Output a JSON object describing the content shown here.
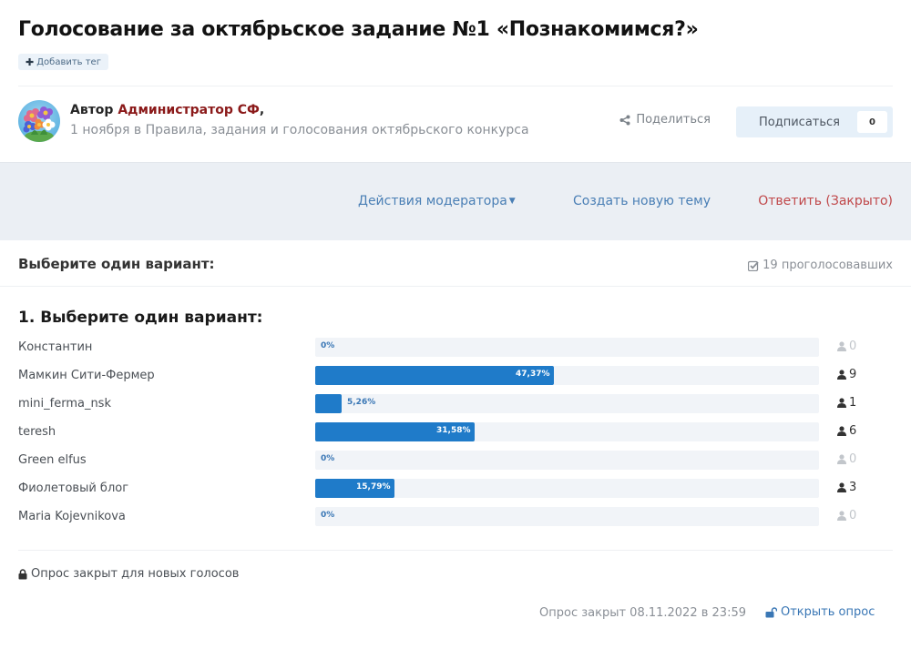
{
  "topic": {
    "title": "Голосование за октябрьское задание №1 «Познакомимся?»",
    "add_tag_label": "Добавить тег"
  },
  "author": {
    "prefix": "Автор",
    "name": "Администратор СФ",
    "suffix": ",",
    "date": "1 ноября",
    "in_word": "в",
    "category": "Правила, задания и голосования октябрьского конкурса"
  },
  "actions": {
    "share_label": "Поделиться",
    "subscribe_label": "Подписаться",
    "subscribe_count": "0"
  },
  "moderation_bar": {
    "moderator_actions": "Действия модератора",
    "new_topic": "Создать новую тему",
    "reply": "Ответить (Закрыто)"
  },
  "poll": {
    "header": "Выберите один вариант:",
    "voters": "19 проголосовавших",
    "question_title": "1. Выберите один вариант:",
    "closed_note": "Опрос закрыт для новых голосов",
    "closed_at": "Опрос закрыт 08.11.2022 в 23:59",
    "open_poll": "Открыть опрос"
  },
  "colors": {
    "bar_fill": "#1f7bc9",
    "bar_track": "#f1f4f8",
    "author_name": "#8b1a1a",
    "link": "#4a7fb5",
    "reply_closed": "#c0484a",
    "mod_bar_bg": "#ebeff4"
  },
  "chart_data": {
    "type": "bar",
    "orientation": "horizontal",
    "title": "1. Выберите один вариант:",
    "categories": [
      "Константин",
      "Мамкин Сити-Фермер",
      "mini_ferma_nsk",
      "teresh",
      "Green elfus",
      "Фиолетовый блог",
      "Maria Kojevnikova"
    ],
    "values": [
      0,
      47.37,
      5.26,
      31.58,
      0,
      15.79,
      0
    ],
    "value_labels": [
      "0%",
      "47,37%",
      "5,26%",
      "31,58%",
      "0%",
      "15,79%",
      "0%"
    ],
    "votes": [
      0,
      9,
      1,
      6,
      0,
      3,
      0
    ],
    "total_votes": 19,
    "xlim": [
      0,
      100
    ],
    "xlabel": "",
    "ylabel": ""
  }
}
